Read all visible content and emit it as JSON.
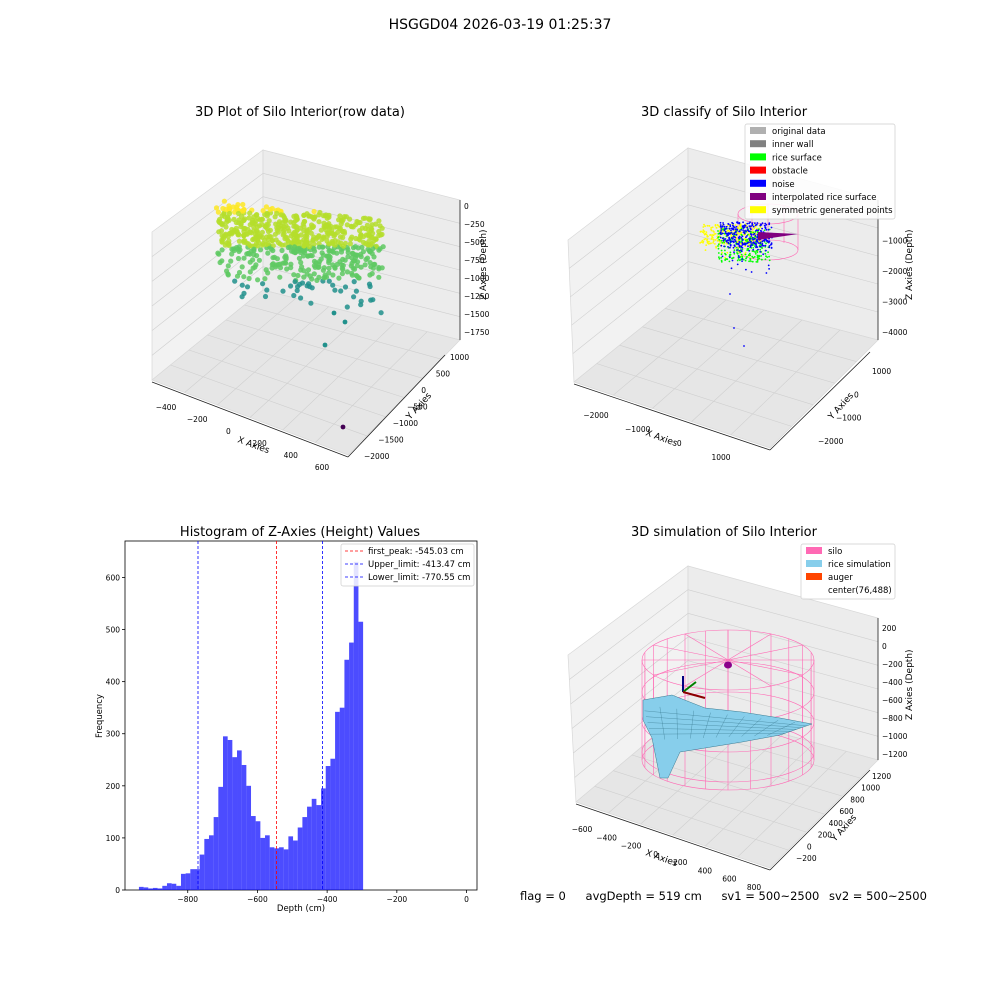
{
  "figure": {
    "suptitle": "HSGGD04 2026-03-19 01:25:37"
  },
  "panel_tl": {
    "title": "3D Plot of Silo Interior(row data)",
    "xlabel": "X Axies",
    "ylabel": "Y Axies",
    "zlabel": "Z Axies (Depth)",
    "xticks": [
      "−400",
      "−200",
      "0",
      "200",
      "400",
      "600"
    ],
    "yticks": [
      "1000",
      "500",
      "0",
      "−500",
      "−1000",
      "−1500",
      "−2000"
    ],
    "zticks": [
      "0",
      "−250",
      "−500",
      "−750",
      "−1000",
      "−1250",
      "−1500",
      "−1750"
    ],
    "colormap": [
      "#440154",
      "#21918c",
      "#5ec962",
      "#b5de2b",
      "#fde725"
    ]
  },
  "panel_tr": {
    "title": "3D classify of Silo Interior",
    "xlabel": "X Axies",
    "ylabel": "Y Axies",
    "zlabel": "Z Axies (Depth)",
    "xticks": [
      "−2000",
      "−1000",
      "0",
      "1000"
    ],
    "yticks": [
      "1000",
      "0",
      "−1000",
      "−2000"
    ],
    "zticks": [
      "0",
      "−1000",
      "−2000",
      "−3000",
      "−4000"
    ],
    "legend": [
      {
        "label": "original data",
        "color": "#b0b0b0"
      },
      {
        "label": "inner wall",
        "color": "#808080"
      },
      {
        "label": "rice surface",
        "color": "#00ff00"
      },
      {
        "label": "obstacle",
        "color": "#ff0000"
      },
      {
        "label": "noise",
        "color": "#0000ff"
      },
      {
        "label": "interpolated rice surface",
        "color": "#800080"
      },
      {
        "label": "symmetric generated points",
        "color": "#ffff00"
      }
    ]
  },
  "panel_br": {
    "title": "3D simulation of Silo Interior",
    "xlabel": "X Axies",
    "ylabel": "Y Axies",
    "zlabel": "Z Axies (Depth)",
    "xticks": [
      "−600",
      "−400",
      "−200",
      "0",
      "200",
      "400",
      "600",
      "800"
    ],
    "yticks": [
      "1200",
      "1000",
      "800",
      "600",
      "400",
      "200",
      "0",
      "−200"
    ],
    "zticks": [
      "200",
      "0",
      "−200",
      "−400",
      "−600",
      "−800",
      "−1000",
      "−1200"
    ],
    "legend": [
      {
        "label": "silo",
        "color": "#ff69b4"
      },
      {
        "label": "rice simulation",
        "color": "#87ceeb"
      },
      {
        "label": "auger",
        "color": "#ff4500"
      },
      {
        "label": "center(76,488)",
        "color": ""
      }
    ]
  },
  "footer": {
    "flag": "flag = 0",
    "avg": "avgDepth = 519 cm",
    "sv1": "sv1 = 500~2500",
    "sv2": "sv2 = 500~2500"
  },
  "chart_data": [
    {
      "type": "bar",
      "title": "Histogram of Z-Axies (Height) Values",
      "xlabel": "Depth (cm)",
      "ylabel": "Frequency",
      "xlim": [
        -980,
        30
      ],
      "ylim": [
        0,
        670
      ],
      "xticks": [
        -800,
        -600,
        -400,
        -200,
        0
      ],
      "yticks": [
        0,
        100,
        200,
        300,
        400,
        500,
        600
      ],
      "bar_color": "#0000ff",
      "bin_start": -940,
      "bin_width": 13.4,
      "values": [
        6,
        5,
        3,
        4,
        3,
        8,
        13,
        12,
        8,
        31,
        32,
        40,
        40,
        68,
        98,
        105,
        140,
        198,
        295,
        288,
        255,
        268,
        240,
        200,
        142,
        132,
        100,
        105,
        82,
        80,
        82,
        78,
        103,
        95,
        120,
        140,
        160,
        175,
        163,
        195,
        238,
        252,
        342,
        350,
        442,
        475,
        630,
        515
      ],
      "lines": [
        {
          "label": "first_peak: -545.03 cm",
          "x": -545.03,
          "color": "#ff0000"
        },
        {
          "label": "Upper_limit: -413.47 cm",
          "x": -413.47,
          "color": "#0000ff"
        },
        {
          "label": "Lower_limit: -770.55 cm",
          "x": -770.55,
          "color": "#0000ff"
        }
      ],
      "legend_position": "top-right"
    }
  ]
}
